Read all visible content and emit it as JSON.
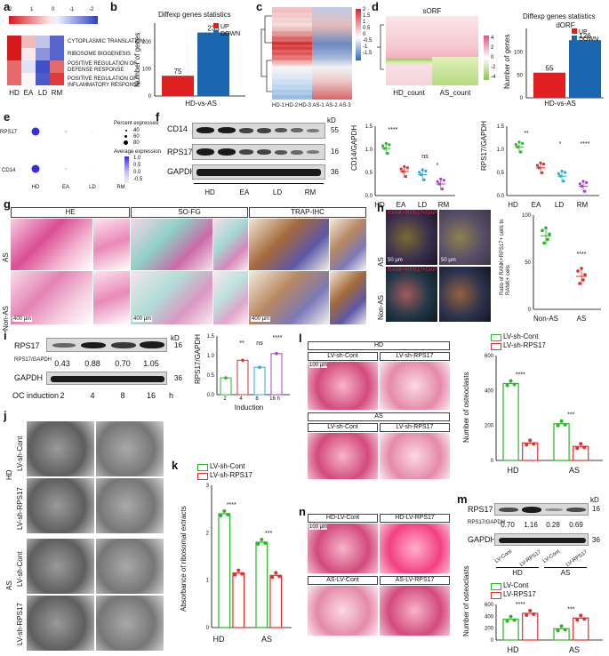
{
  "panel_letters": [
    "a",
    "b",
    "c",
    "d",
    "e",
    "f",
    "g",
    "h",
    "i",
    "j",
    "k",
    "l",
    "m",
    "n"
  ],
  "panel_a": {
    "scale_ticks": [
      "2",
      "1",
      "0",
      "-1",
      "-2"
    ],
    "terms": [
      "CYTOPLASMIC TRANSLATION",
      "RIBOSOME BIOGENESIS",
      "POSITIVE REGULATION OF DEFENSE RESPONSE",
      "POSITIVE REGULATION OF INFLAMMATORY RESPONSE"
    ],
    "groups": [
      "HD",
      "EA",
      "LD",
      "RM"
    ],
    "heat": [
      [
        2,
        0.6,
        -0.6,
        -1.6
      ],
      [
        2,
        0.2,
        -1.1,
        -1.6
      ],
      [
        1.3,
        -0.3,
        -1.8,
        1.3
      ],
      [
        1.3,
        0.1,
        -1.7,
        1.7
      ]
    ]
  },
  "panel_b": {
    "title": "Diffexp genes statistics",
    "ylabel": "Number of genes",
    "xlabel": "HD-vs-AS",
    "legend": [
      "UP",
      "DOWN"
    ],
    "values": [
      75,
      235
    ],
    "colors": [
      "#e02020",
      "#1a66b0"
    ]
  },
  "panel_c": {
    "samples": [
      "HD-1",
      "HD-2",
      "HD-3",
      "AS-1",
      "AS-2",
      "AS-3"
    ],
    "scale_ticks": [
      "2",
      "1.5",
      "1",
      "0.5",
      "0",
      "-0.5",
      "-1",
      "-1.5"
    ]
  },
  "panel_d": {
    "title": "sORF",
    "columns": [
      "HD_count",
      "AS_count"
    ],
    "scale_ticks": [
      "4",
      "2",
      "0",
      "-2",
      "-4"
    ],
    "bar_title": "Diffexp genes statistics",
    "bar_subtitle": "dORF",
    "ylabel": "Number of genes",
    "xlabel": "HD-vs-AS",
    "legend": [
      "UP",
      "DOWN"
    ],
    "values": [
      55,
      126
    ],
    "colors": [
      "#e02020",
      "#1a66b0"
    ]
  },
  "panel_e": {
    "genes": [
      "RPS17",
      "CD14"
    ],
    "groups": [
      "HD",
      "EA",
      "LD",
      "RM"
    ],
    "pct_title": "Percent expressed",
    "pct_ticks": [
      "40",
      "60",
      "80"
    ],
    "avg_title": "Average expression",
    "avg_ticks": [
      "1.0",
      "0.5",
      "0.0",
      "-0.5"
    ]
  },
  "panel_f": {
    "proteins": [
      "CD14",
      "RPS17",
      "GAPDH"
    ],
    "kd_label": "kD",
    "kd": [
      "55",
      "16",
      "36"
    ],
    "groups": [
      "HD",
      "EA",
      "LD",
      "RM"
    ],
    "ylabel1": "CD14/GAPDH",
    "ylabel2": "RPS17/GAPDH",
    "sig1": [
      "****",
      "ns",
      "*"
    ],
    "sig2": [
      "**",
      "*",
      "****"
    ],
    "chart_data": [
      {
        "type": "scatter",
        "ylabel": "CD14/GAPDH",
        "categories": [
          "HD",
          "EA",
          "LD",
          "RM"
        ],
        "values": [
          1.02,
          0.52,
          0.45,
          0.25
        ],
        "ylim": [
          0,
          1.5
        ]
      },
      {
        "type": "scatter",
        "ylabel": "RPS17/GAPDH",
        "categories": [
          "HD",
          "EA",
          "LD",
          "RM"
        ],
        "values": [
          1.05,
          0.6,
          0.42,
          0.2
        ],
        "ylim": [
          0,
          1.5
        ]
      }
    ]
  },
  "panel_g": {
    "stains": [
      "HE",
      "SO-FG",
      "TRAP-IHC"
    ],
    "rows": [
      "AS",
      "Non-AS"
    ],
    "scale": "400 μm"
  },
  "panel_h": {
    "rows": [
      "AS",
      "Non-AS"
    ],
    "channels": "RANK+RPS17+DAPI",
    "scale": "50 μm",
    "ylabel": "Ratio of RANK+RPS17+ cells to RANK+ cells",
    "categories": [
      "Non-AS",
      "AS"
    ],
    "sig": "****",
    "chart_data": {
      "type": "scatter",
      "categories": [
        "Non-AS",
        "AS"
      ],
      "values": [
        78,
        35
      ],
      "ylim": [
        0,
        100
      ]
    }
  },
  "panel_i": {
    "protein": "RPS17",
    "ratio_label": "RPS17/GAPDH",
    "ratios": [
      "0.43",
      "0.88",
      "0.70",
      "1.05"
    ],
    "loading": "GAPDH",
    "kd_label": "kD",
    "kd": [
      "16",
      "36"
    ],
    "xlabel": "OC induction",
    "times": [
      "2",
      "4",
      "8",
      "16"
    ],
    "unit": "h",
    "ylabel": "RPS17/GAPDH",
    "chart_xlabel": "Induction",
    "time_labels": [
      "2",
      "4",
      "8",
      "16 h"
    ],
    "sig": [
      "**",
      "ns",
      "****"
    ],
    "chart_data": {
      "type": "bar",
      "categories": [
        "2",
        "4",
        "8",
        "16 h"
      ],
      "values": [
        0.43,
        0.88,
        0.7,
        1.05
      ],
      "ylim": [
        0,
        1.5
      ]
    }
  },
  "panel_j": {
    "groups": [
      "HD",
      "AS"
    ],
    "rows": [
      "LV-sh-Cont",
      "LV-sh-RPS17",
      "LV-sh-Cont",
      "LV-sh-RPS17"
    ]
  },
  "panel_k": {
    "legend": [
      "LV-sh-Cont",
      "LV-sh-RPS17"
    ],
    "ylabel": "Absorbance of ribosomal extracts",
    "groups": [
      "HD",
      "AS"
    ],
    "sig": [
      "****",
      "***"
    ],
    "colors": [
      "#2bb52b",
      "#e03030"
    ],
    "chart_data": {
      "type": "bar",
      "categories": [
        "HD",
        "AS"
      ],
      "series": [
        {
          "name": "LV-sh-Cont",
          "values": [
            2.4,
            1.8
          ]
        },
        {
          "name": "LV-sh-RPS17",
          "values": [
            1.15,
            1.1
          ]
        }
      ],
      "ylim": [
        0,
        3
      ]
    }
  },
  "panel_l": {
    "groups": [
      "HD",
      "AS"
    ],
    "conditions": [
      "LV-sh-Cont",
      "LV-sh-RPS17"
    ],
    "scale": "100 μm",
    "legend": [
      "LV-sh-Cont",
      "LV-sh-RPS17"
    ],
    "ylabel": "Number of osteoclasts",
    "sig": [
      "****",
      "***"
    ],
    "chart_data": {
      "type": "bar",
      "categories": [
        "HD",
        "AS"
      ],
      "series": [
        {
          "name": "LV-sh-Cont",
          "values": [
            440,
            210
          ]
        },
        {
          "name": "LV-sh-RPS17",
          "values": [
            100,
            80
          ]
        }
      ],
      "ylim": [
        0,
        600
      ]
    }
  },
  "panel_m": {
    "protein": "RPS17",
    "ratio_label": "RPS17/GAPDH",
    "ratios": [
      "0.70",
      "1.16",
      "0.28",
      "0.69"
    ],
    "loading": "GAPDH",
    "kd_label": "kD",
    "kd": [
      "16",
      "36"
    ],
    "lanes": [
      "LV-Cont",
      "LV-RPS17",
      "LV-Cont",
      "LV-RPS17"
    ],
    "groups": [
      "HD",
      "AS"
    ]
  },
  "panel_n": {
    "conditions": [
      "HD-LV-Cont",
      "HD-LV-RPS17",
      "AS-LV-Cont",
      "AS-LV-RPS17"
    ],
    "scale": "100 μm",
    "legend": [
      "LV-Cont",
      "LV-RPS17"
    ],
    "ylabel": "Number of osteoclasts",
    "groups": [
      "HD",
      "AS"
    ],
    "sig": [
      "****",
      "***"
    ],
    "chart_data": {
      "type": "bar",
      "categories": [
        "HD",
        "AS"
      ],
      "series": [
        {
          "name": "LV-Cont",
          "values": [
            350,
            190
          ]
        },
        {
          "name": "LV-RPS17",
          "values": [
            450,
            370
          ]
        }
      ],
      "ylim": [
        0,
        600
      ]
    }
  }
}
